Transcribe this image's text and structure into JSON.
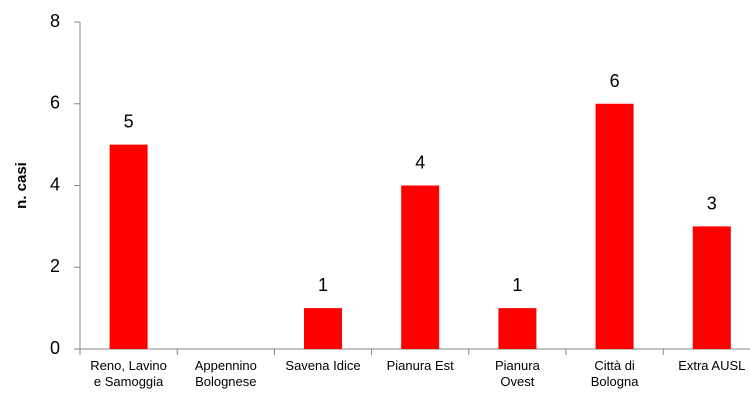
{
  "chart_data": {
    "type": "bar",
    "categories": [
      [
        "Reno, Lavino",
        "e Samoggia"
      ],
      [
        "Appennino",
        "Bolognese"
      ],
      [
        "Savena Idice"
      ],
      [
        "Pianura Est"
      ],
      [
        "Pianura",
        "Ovest"
      ],
      [
        "Città di",
        "Bologna"
      ],
      [
        "Extra AUSL"
      ]
    ],
    "values": [
      5,
      0,
      1,
      4,
      1,
      6,
      3
    ],
    "data_labels": [
      "5",
      "",
      "1",
      "4",
      "1",
      "6",
      "3"
    ],
    "title": "",
    "xlabel": "",
    "ylabel": "n. casi",
    "ylim": [
      0,
      8
    ],
    "yticks": [
      0,
      2,
      4,
      6,
      8
    ],
    "grid": false,
    "legend": "none",
    "bar_color": "#ff0000"
  }
}
